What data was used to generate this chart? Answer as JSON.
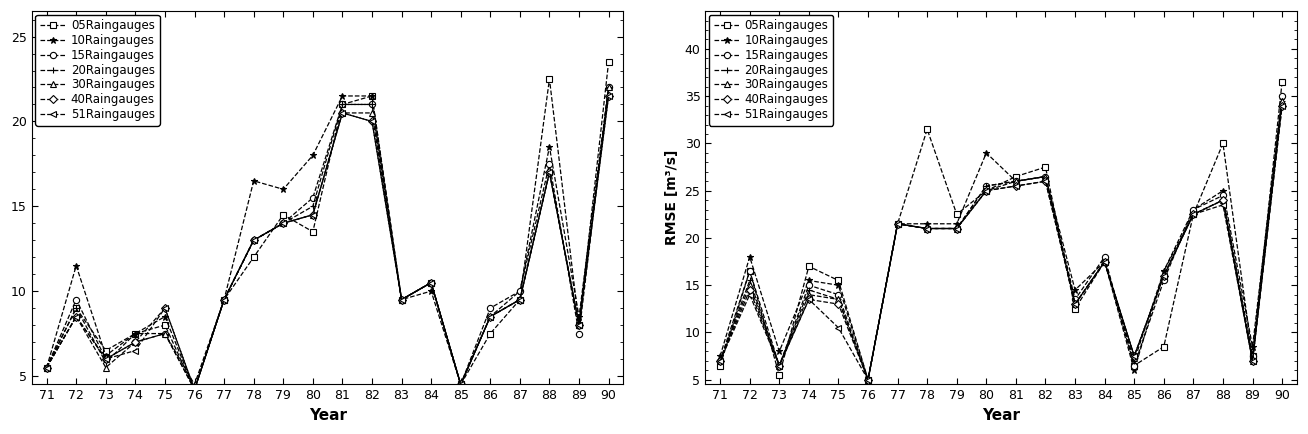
{
  "years": [
    71,
    72,
    73,
    74,
    75,
    76,
    77,
    78,
    79,
    80,
    81,
    82,
    83,
    84,
    85,
    86,
    87,
    88,
    89,
    90
  ],
  "mae": {
    "05": [
      5.5,
      9.0,
      6.5,
      7.5,
      8.0,
      4.2,
      9.5,
      12.0,
      14.5,
      13.5,
      21.0,
      21.5,
      9.5,
      10.5,
      4.5,
      7.5,
      9.5,
      22.5,
      8.0,
      23.5
    ],
    "10": [
      5.5,
      11.5,
      6.2,
      7.5,
      8.5,
      4.2,
      9.5,
      16.5,
      16.0,
      18.0,
      21.5,
      21.5,
      9.5,
      10.0,
      4.5,
      8.5,
      10.0,
      18.5,
      8.5,
      22.0
    ],
    "15": [
      5.5,
      9.5,
      6.0,
      7.0,
      7.5,
      4.2,
      9.5,
      13.0,
      14.0,
      15.5,
      21.0,
      21.0,
      9.5,
      10.5,
      4.5,
      9.0,
      10.0,
      17.5,
      7.5,
      22.0
    ],
    "20": [
      5.5,
      9.0,
      5.8,
      7.5,
      7.5,
      4.2,
      9.5,
      13.0,
      14.0,
      15.0,
      21.0,
      21.0,
      9.5,
      10.5,
      4.5,
      8.5,
      9.5,
      17.0,
      8.0,
      22.0
    ],
    "30": [
      5.5,
      8.5,
      5.5,
      7.0,
      7.5,
      4.5,
      9.5,
      13.0,
      14.0,
      14.5,
      20.5,
      20.5,
      9.5,
      10.5,
      4.5,
      8.5,
      9.5,
      17.0,
      8.0,
      22.0
    ],
    "40": [
      5.5,
      8.5,
      6.0,
      7.0,
      9.0,
      4.2,
      9.5,
      13.0,
      14.0,
      14.5,
      20.5,
      20.0,
      9.5,
      10.5,
      4.5,
      8.5,
      9.5,
      17.0,
      8.0,
      21.5
    ],
    "51": [
      5.5,
      8.5,
      6.0,
      6.5,
      9.0,
      4.2,
      9.5,
      13.0,
      14.0,
      14.5,
      20.5,
      20.0,
      9.5,
      10.5,
      4.5,
      8.5,
      9.5,
      17.0,
      8.0,
      21.5
    ]
  },
  "rmse": {
    "05": [
      6.5,
      16.5,
      5.5,
      17.0,
      15.5,
      5.0,
      21.5,
      31.5,
      22.5,
      25.0,
      26.5,
      27.5,
      12.5,
      17.5,
      6.5,
      8.5,
      22.5,
      30.0,
      7.5,
      36.5
    ],
    "10": [
      7.5,
      18.0,
      8.0,
      15.5,
      15.0,
      5.0,
      21.5,
      21.5,
      21.5,
      29.0,
      26.0,
      26.5,
      14.5,
      17.5,
      6.0,
      16.5,
      23.0,
      25.0,
      8.5,
      35.0
    ],
    "15": [
      7.0,
      16.5,
      6.5,
      15.0,
      14.0,
      5.0,
      21.5,
      21.0,
      21.0,
      25.5,
      26.0,
      26.5,
      13.5,
      18.0,
      6.5,
      15.5,
      23.0,
      24.5,
      7.5,
      35.0
    ],
    "20": [
      7.0,
      15.5,
      6.5,
      14.5,
      13.5,
      5.0,
      21.5,
      21.0,
      21.0,
      25.5,
      26.0,
      26.5,
      13.0,
      17.5,
      7.0,
      16.5,
      22.5,
      24.0,
      7.0,
      34.5
    ],
    "30": [
      7.0,
      15.0,
      6.5,
      14.0,
      13.5,
      5.0,
      21.5,
      21.0,
      21.0,
      25.0,
      26.0,
      26.5,
      13.0,
      17.5,
      7.5,
      16.0,
      22.5,
      24.0,
      7.0,
      34.5
    ],
    "40": [
      7.0,
      14.5,
      6.5,
      13.5,
      13.0,
      5.0,
      21.5,
      21.0,
      21.0,
      25.0,
      25.5,
      26.0,
      13.0,
      17.5,
      7.5,
      16.0,
      22.5,
      24.0,
      7.0,
      34.0
    ],
    "51": [
      7.0,
      14.0,
      6.5,
      13.5,
      10.5,
      5.0,
      21.5,
      21.0,
      21.0,
      25.0,
      25.5,
      26.0,
      13.0,
      17.5,
      7.5,
      16.0,
      22.5,
      23.5,
      7.0,
      34.0
    ]
  },
  "series_labels": [
    "05Raingauges",
    "10Raingauges",
    "15Raingauges",
    "20Raingauges",
    "30Raingauges",
    "40Raingauges",
    "51Raingauges"
  ],
  "series_keys": [
    "05",
    "10",
    "15",
    "20",
    "30",
    "40",
    "51"
  ],
  "markers": [
    "s",
    "*",
    "o",
    "+",
    "^",
    "D",
    "<"
  ],
  "marker_filled": [
    false,
    true,
    false,
    false,
    false,
    false,
    false
  ],
  "mae_ylabel": "",
  "rmse_ylabel": "RMSE [m³/s]",
  "xlabel": "Year",
  "mae_ylim": [
    4.5,
    26.5
  ],
  "rmse_ylim": [
    4.5,
    44
  ],
  "mae_yticks": [
    5,
    10,
    15,
    20,
    25
  ],
  "rmse_yticks": [
    5,
    10,
    15,
    20,
    25,
    30,
    35,
    40
  ],
  "xtick_labels": [
    "71",
    "72",
    "73",
    "74",
    "75",
    "76",
    "77",
    "78",
    "79",
    "80",
    "81",
    "82",
    "83",
    "84",
    "85",
    "86",
    "87",
    "88",
    "89",
    "90"
  ],
  "linewidth": 0.9,
  "markersize": 4.5,
  "fontsize": 10,
  "legend_fontsize": 8.5
}
